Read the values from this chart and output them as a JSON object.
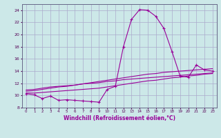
{
  "xlabel": "Windchill (Refroidissement éolien,°C)",
  "hours": [
    0,
    1,
    2,
    3,
    4,
    5,
    6,
    7,
    8,
    9,
    10,
    11,
    12,
    13,
    14,
    15,
    16,
    17,
    18,
    19,
    20,
    21,
    22,
    23
  ],
  "main_line": [
    10.3,
    10.1,
    9.5,
    9.9,
    9.2,
    9.3,
    9.2,
    9.1,
    9.0,
    8.9,
    11.0,
    11.5,
    18.0,
    22.5,
    24.1,
    24.0,
    23.0,
    21.0,
    17.2,
    13.2,
    13.0,
    15.0,
    14.2,
    14.0
  ],
  "line2": [
    10.4,
    10.4,
    10.5,
    10.6,
    10.7,
    10.8,
    10.9,
    11.0,
    11.1,
    11.2,
    11.4,
    11.6,
    11.8,
    12.0,
    12.2,
    12.4,
    12.5,
    12.7,
    12.9,
    13.0,
    13.2,
    13.3,
    13.5,
    13.6
  ],
  "line3": [
    10.7,
    10.8,
    11.0,
    11.2,
    11.4,
    11.5,
    11.7,
    11.9,
    12.1,
    12.3,
    12.5,
    12.7,
    12.9,
    13.1,
    13.3,
    13.5,
    13.6,
    13.8,
    13.9,
    14.0,
    14.1,
    14.2,
    14.3,
    14.4
  ],
  "line4": [
    10.9,
    11.0,
    11.2,
    11.4,
    11.5,
    11.6,
    11.7,
    11.9,
    12.0,
    12.1,
    12.3,
    12.4,
    12.6,
    12.7,
    12.8,
    12.9,
    13.0,
    13.1,
    13.2,
    13.3,
    13.4,
    13.5,
    13.6,
    13.7
  ],
  "line_color": "#990099",
  "bg_color": "#cce8e8",
  "grid_color": "#aaaacc",
  "ylim": [
    8,
    25
  ],
  "yticks": [
    8,
    10,
    12,
    14,
    16,
    18,
    20,
    22,
    24
  ],
  "marker": "+"
}
